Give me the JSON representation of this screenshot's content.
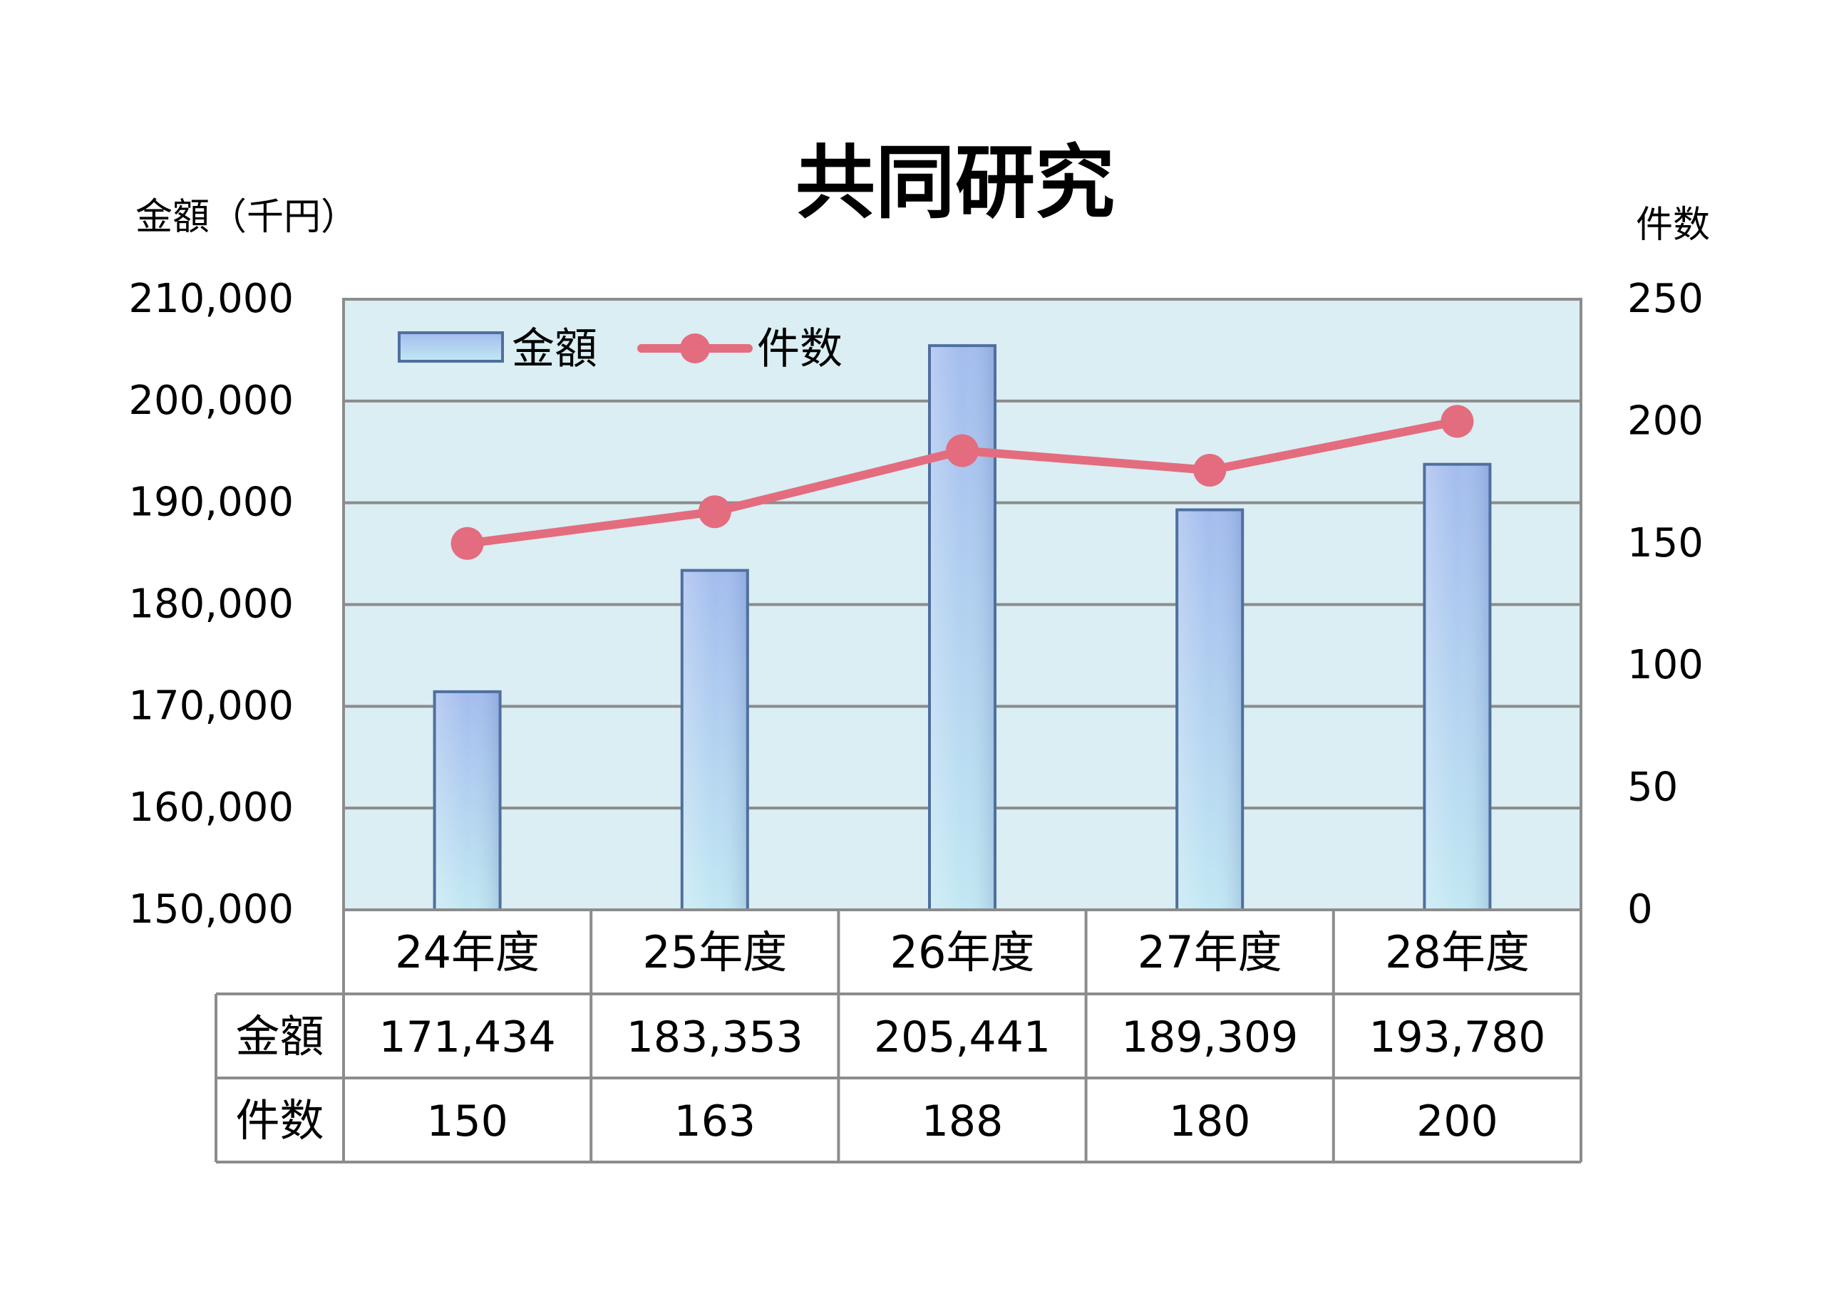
{
  "chart_data": {
    "type": "bar",
    "title": "共同研究",
    "categories": [
      "24年度",
      "25年度",
      "26年度",
      "27年度",
      "28年度"
    ],
    "y_left_label": "金額（千円）",
    "y_right_label": "件数",
    "y_left_lim": [
      150000,
      210000
    ],
    "y_left_ticks": [
      "150,000",
      "160,000",
      "170,000",
      "180,000",
      "190,000",
      "200,000",
      "210,000"
    ],
    "y_right_lim": [
      0,
      250
    ],
    "y_right_ticks": [
      "0",
      "50",
      "100",
      "150",
      "200",
      "250"
    ],
    "grid": true,
    "legend_position": "top-left",
    "series": [
      {
        "name": "金額",
        "type": "bar",
        "axis": "left",
        "color": "#a9c4ee",
        "values": [
          171434,
          183353,
          205441,
          189309,
          193780
        ]
      },
      {
        "name": "件数",
        "type": "line",
        "axis": "right",
        "color": "#e46c7f",
        "values": [
          150,
          163,
          188,
          180,
          200
        ]
      }
    ],
    "table": {
      "rows": [
        {
          "label": "金額",
          "values": [
            "171,434",
            "183,353",
            "205,441",
            "189,309",
            "193,780"
          ]
        },
        {
          "label": "件数",
          "values": [
            "150",
            "163",
            "188",
            "180",
            "200"
          ]
        }
      ]
    }
  }
}
